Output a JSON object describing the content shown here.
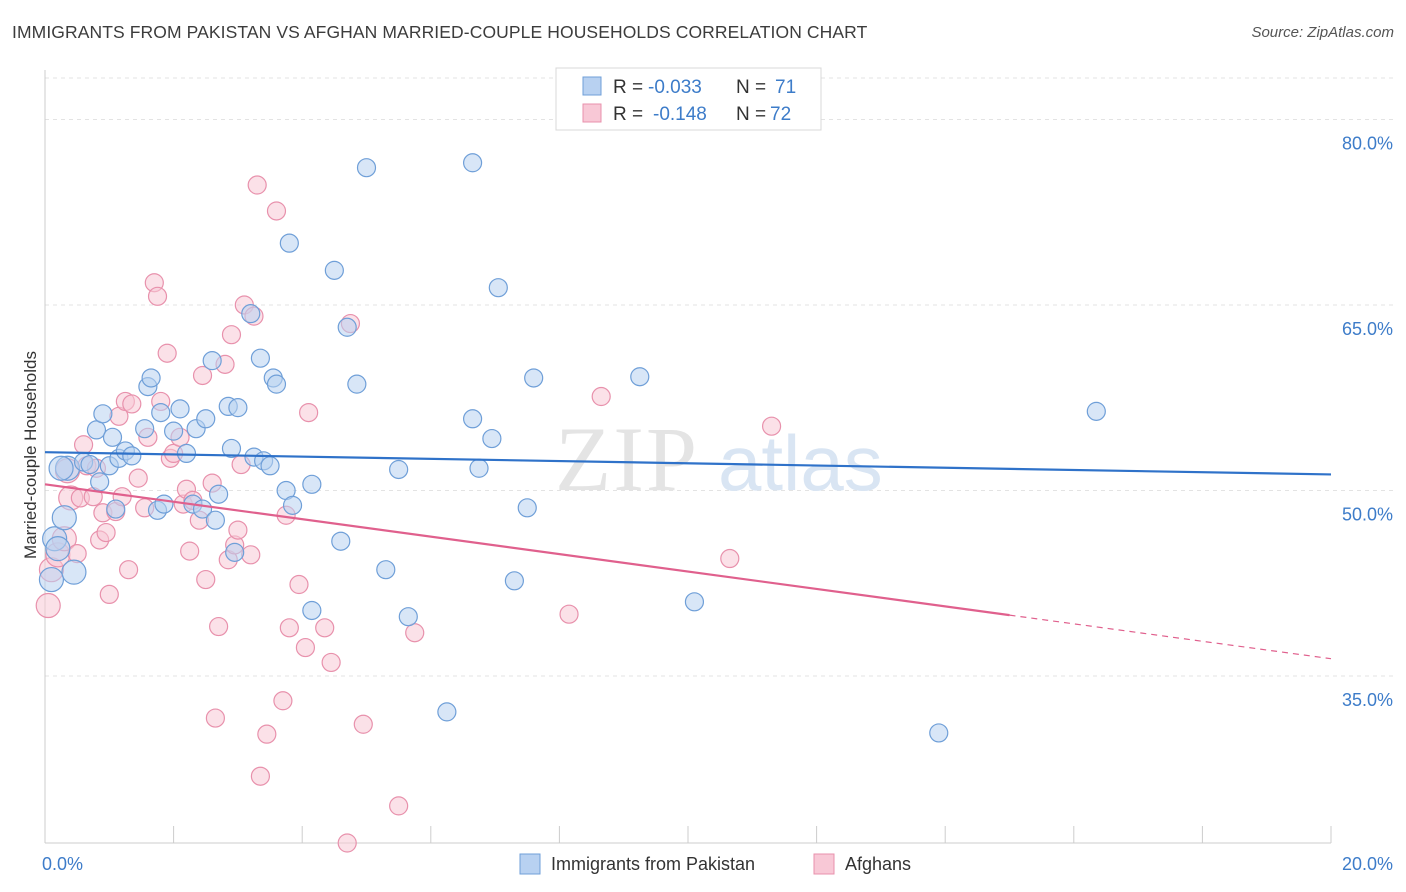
{
  "title": "IMMIGRANTS FROM PAKISTAN VS AFGHAN MARRIED-COUPLE HOUSEHOLDS CORRELATION CHART",
  "source": "Source: ZipAtlas.com",
  "watermark": {
    "zip": "ZIP",
    "atlas": "atlas"
  },
  "colors": {
    "pakistan_fill": "#b8d1f1",
    "pakistan_stroke": "#6f9fd8",
    "pakistan_line": "#2f72c9",
    "afghan_fill": "#f8c8d6",
    "afghan_stroke": "#e891ac",
    "afghan_line": "#e0608d",
    "tick_text": "#3d7cc9",
    "grid": "#e3e3e3"
  },
  "legend_top": {
    "rows": [
      {
        "r_label": "R =",
        "r_value": "-0.033",
        "n_label": "N =",
        "n_value": "71"
      },
      {
        "r_label": "R =",
        "r_value": "-0.148",
        "n_label": "N =",
        "n_value": "72"
      }
    ]
  },
  "legend_bottom": [
    {
      "label": "Immigrants from Pakistan"
    },
    {
      "label": "Afghans"
    }
  ],
  "chart_data": {
    "type": "scatter",
    "title": "IMMIGRANTS FROM PAKISTAN VS AFGHAN MARRIED-COUPLE HOUSEHOLDS CORRELATION CHART",
    "xlabel": "",
    "ylabel": "Married-couple Households",
    "xlim": [
      0,
      20
    ],
    "ylim": [
      21.5,
      84
    ],
    "x_tick_labels": [
      {
        "value": 0,
        "label": "0.0%"
      },
      {
        "value": 20,
        "label": "20.0%"
      }
    ],
    "y_tick_labels": [
      {
        "value": 35,
        "label": "35.0%"
      },
      {
        "value": 50,
        "label": "50.0%"
      },
      {
        "value": 65,
        "label": "65.0%"
      },
      {
        "value": 80,
        "label": "80.0%"
      }
    ],
    "grid": true,
    "legend_position": "top-center",
    "series": [
      {
        "name": "Immigrants from Pakistan",
        "R": -0.033,
        "N": 71,
        "trend": {
          "x0": 0,
          "y0": 53.1,
          "x1": 20,
          "y1": 51.3,
          "solid_until": 20
        },
        "points": [
          [
            0.1,
            42.8
          ],
          [
            0.15,
            46.1
          ],
          [
            0.2,
            45.3
          ],
          [
            0.3,
            47.8
          ],
          [
            0.35,
            51.8
          ],
          [
            0.45,
            43.4
          ],
          [
            0.6,
            52.3
          ],
          [
            0.7,
            52.1
          ],
          [
            0.8,
            54.9
          ],
          [
            0.85,
            50.7
          ],
          [
            0.9,
            56.2
          ],
          [
            1.0,
            52.0
          ],
          [
            1.05,
            54.3
          ],
          [
            1.1,
            48.5
          ],
          [
            1.15,
            52.6
          ],
          [
            1.25,
            53.2
          ],
          [
            1.35,
            52.8
          ],
          [
            1.55,
            55.0
          ],
          [
            1.6,
            58.4
          ],
          [
            1.65,
            59.1
          ],
          [
            1.75,
            48.4
          ],
          [
            1.8,
            56.3
          ],
          [
            1.85,
            48.9
          ],
          [
            2.0,
            54.8
          ],
          [
            2.1,
            56.6
          ],
          [
            2.2,
            53.0
          ],
          [
            2.3,
            48.9
          ],
          [
            2.35,
            55.0
          ],
          [
            2.45,
            48.5
          ],
          [
            2.5,
            55.8
          ],
          [
            2.6,
            60.5
          ],
          [
            2.65,
            47.6
          ],
          [
            2.7,
            49.7
          ],
          [
            2.85,
            56.8
          ],
          [
            2.9,
            53.4
          ],
          [
            2.95,
            45.0
          ],
          [
            3.0,
            56.7
          ],
          [
            3.2,
            64.3
          ],
          [
            3.25,
            52.7
          ],
          [
            3.35,
            60.7
          ],
          [
            3.4,
            52.4
          ],
          [
            3.5,
            52.0
          ],
          [
            3.55,
            59.1
          ],
          [
            3.6,
            58.6
          ],
          [
            3.75,
            50.0
          ],
          [
            3.8,
            70.0
          ],
          [
            3.85,
            48.8
          ],
          [
            4.15,
            50.5
          ],
          [
            4.15,
            40.3
          ],
          [
            4.5,
            67.8
          ],
          [
            4.6,
            45.9
          ],
          [
            4.7,
            63.2
          ],
          [
            4.85,
            58.6
          ],
          [
            5.0,
            76.1
          ],
          [
            5.3,
            43.6
          ],
          [
            5.5,
            51.7
          ],
          [
            5.65,
            39.8
          ],
          [
            6.25,
            32.1
          ],
          [
            6.65,
            55.8
          ],
          [
            6.65,
            76.5
          ],
          [
            6.75,
            51.8
          ],
          [
            6.95,
            54.2
          ],
          [
            7.05,
            66.4
          ],
          [
            7.3,
            42.7
          ],
          [
            7.5,
            48.6
          ],
          [
            7.6,
            59.1
          ],
          [
            9.25,
            59.2
          ],
          [
            10.1,
            41.0
          ],
          [
            13.9,
            30.4
          ],
          [
            16.35,
            56.4
          ],
          [
            0.25,
            51.8
          ]
        ]
      },
      {
        "name": "Afghans",
        "R": -0.148,
        "N": 72,
        "trend": {
          "x0": 0,
          "y0": 50.5,
          "x1": 20,
          "y1": 36.4,
          "solid_until": 15.0
        },
        "points": [
          [
            0.05,
            40.7
          ],
          [
            0.1,
            43.6
          ],
          [
            0.2,
            44.8
          ],
          [
            0.3,
            46.1
          ],
          [
            0.35,
            51.6
          ],
          [
            0.4,
            49.4
          ],
          [
            0.5,
            44.9
          ],
          [
            0.55,
            49.4
          ],
          [
            0.6,
            53.7
          ],
          [
            0.65,
            52.0
          ],
          [
            0.75,
            49.5
          ],
          [
            0.8,
            51.8
          ],
          [
            0.85,
            46.0
          ],
          [
            0.9,
            48.2
          ],
          [
            0.95,
            46.6
          ],
          [
            1.0,
            41.6
          ],
          [
            1.1,
            48.3
          ],
          [
            1.15,
            56.0
          ],
          [
            1.2,
            49.5
          ],
          [
            1.25,
            57.2
          ],
          [
            1.3,
            43.6
          ],
          [
            1.35,
            57.0
          ],
          [
            1.45,
            51.0
          ],
          [
            1.55,
            48.6
          ],
          [
            1.6,
            54.3
          ],
          [
            1.7,
            66.8
          ],
          [
            1.75,
            65.7
          ],
          [
            1.8,
            57.2
          ],
          [
            1.9,
            61.1
          ],
          [
            1.95,
            52.6
          ],
          [
            2.0,
            53.0
          ],
          [
            2.1,
            54.3
          ],
          [
            2.15,
            48.9
          ],
          [
            2.2,
            50.1
          ],
          [
            2.25,
            45.1
          ],
          [
            2.3,
            49.2
          ],
          [
            2.4,
            47.6
          ],
          [
            2.45,
            59.3
          ],
          [
            2.5,
            42.8
          ],
          [
            2.6,
            50.6
          ],
          [
            2.65,
            31.6
          ],
          [
            2.7,
            39.0
          ],
          [
            2.8,
            60.2
          ],
          [
            2.85,
            44.4
          ],
          [
            2.9,
            62.6
          ],
          [
            2.95,
            45.6
          ],
          [
            3.0,
            46.8
          ],
          [
            3.05,
            52.1
          ],
          [
            3.1,
            65.0
          ],
          [
            3.2,
            44.8
          ],
          [
            3.25,
            64.1
          ],
          [
            3.3,
            74.7
          ],
          [
            3.35,
            26.9
          ],
          [
            3.45,
            30.3
          ],
          [
            3.6,
            72.6
          ],
          [
            3.7,
            33.0
          ],
          [
            3.75,
            48.0
          ],
          [
            3.8,
            38.9
          ],
          [
            3.95,
            42.4
          ],
          [
            4.05,
            37.3
          ],
          [
            4.1,
            56.3
          ],
          [
            4.35,
            38.9
          ],
          [
            4.45,
            36.1
          ],
          [
            4.7,
            21.5
          ],
          [
            4.75,
            63.5
          ],
          [
            4.95,
            31.1
          ],
          [
            5.5,
            24.5
          ],
          [
            5.75,
            38.5
          ],
          [
            8.15,
            40.0
          ],
          [
            8.65,
            57.6
          ],
          [
            10.65,
            44.5
          ],
          [
            11.3,
            55.2
          ]
        ]
      }
    ]
  }
}
